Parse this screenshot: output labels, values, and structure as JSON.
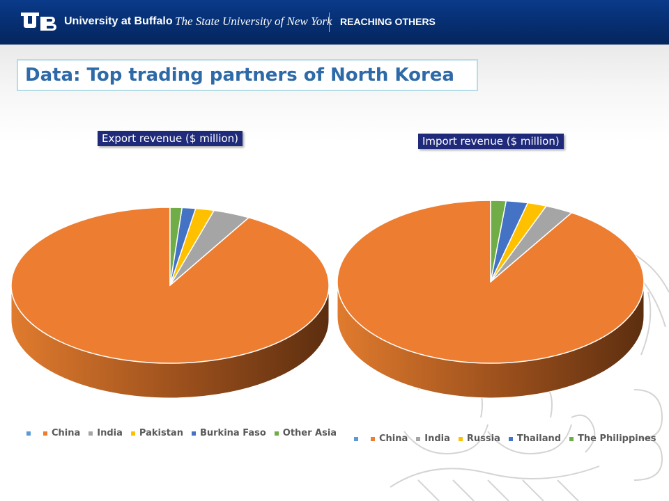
{
  "header": {
    "institution": "University at Buffalo",
    "system": "The State University of New York",
    "tagline": "REACHING OTHERS",
    "logo_icon": "ub-monogram-icon"
  },
  "slide": {
    "title": "Data: Top trading partners of North Korea"
  },
  "chart_data": [
    {
      "type": "pie",
      "style": "3d",
      "title": "Export revenue ($ million)",
      "categories": [
        "",
        "China",
        "India",
        "Pakistan",
        "Burkina Faso",
        "Other Asia"
      ],
      "values": [
        0,
        2670,
        110,
        55,
        40,
        35
      ],
      "colors": [
        "#5b9bd5",
        "#ed7d31",
        "#a5a5a5",
        "#ffc000",
        "#4472c4",
        "#70ad47"
      ],
      "legend": "bottom",
      "data_labels": false
    },
    {
      "type": "pie",
      "style": "3d",
      "title": "Import revenue ($ million)",
      "categories": [
        "",
        "China",
        "India",
        "Russia",
        "Thailand",
        "The Philippines"
      ],
      "values": [
        0,
        3390,
        110,
        75,
        85,
        60
      ],
      "colors": [
        "#5b9bd5",
        "#ed7d31",
        "#a5a5a5",
        "#ffc000",
        "#4472c4",
        "#70ad47"
      ],
      "legend": "bottom",
      "data_labels": false
    }
  ]
}
